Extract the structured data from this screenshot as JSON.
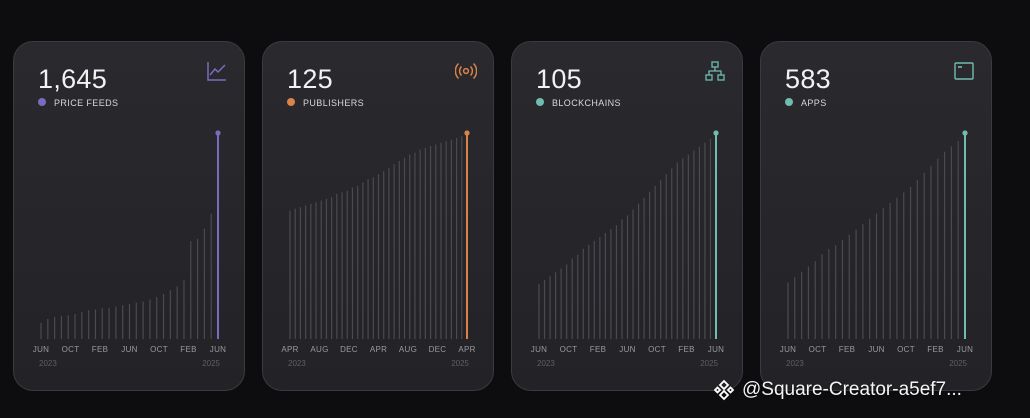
{
  "cards": [
    {
      "value": "1,645",
      "label": "PRICE FEEDS",
      "accent": "#7b6bbf",
      "icon": "trend-chart-icon"
    },
    {
      "value": "125",
      "label": "PUBLISHERS",
      "accent": "#d9834a",
      "icon": "broadcast-icon"
    },
    {
      "value": "105",
      "label": "BLOCKCHAINS",
      "accent": "#6fbcb0",
      "icon": "network-icon"
    },
    {
      "value": "583",
      "label": "APPS",
      "accent": "#6fbcb0",
      "icon": "window-icon"
    }
  ],
  "chart_data": [
    {
      "type": "bar",
      "title": "PRICE FEEDS",
      "ylim": [
        0,
        1645
      ],
      "x_ticks": [
        "JUN",
        "OCT",
        "FEB",
        "JUN",
        "OCT",
        "FEB",
        "JUN"
      ],
      "year_labels": [
        "2023",
        "2025"
      ],
      "values": [
        130,
        160,
        175,
        185,
        190,
        200,
        215,
        230,
        235,
        245,
        250,
        260,
        270,
        280,
        290,
        300,
        315,
        335,
        360,
        390,
        420,
        470,
        780,
        800,
        880,
        1000,
        1645
      ],
      "highlight_last": true
    },
    {
      "type": "bar",
      "title": "PUBLISHERS",
      "ylim": [
        0,
        125
      ],
      "x_ticks": [
        "APR",
        "AUG",
        "DEC",
        "APR",
        "AUG",
        "DEC",
        "APR"
      ],
      "year_labels": [
        "2023",
        "2025"
      ],
      "values": [
        78,
        79,
        80,
        81,
        82,
        83,
        84,
        85,
        86,
        88,
        89,
        90,
        92,
        93,
        95,
        97,
        98,
        100,
        102,
        104,
        106,
        108,
        110,
        112,
        113,
        115,
        116,
        117,
        118,
        119,
        120,
        121,
        122,
        123,
        125
      ],
      "highlight_last": true
    },
    {
      "type": "bar",
      "title": "BLOCKCHAINS",
      "ylim": [
        0,
        105
      ],
      "x_ticks": [
        "JUN",
        "OCT",
        "FEB",
        "JUN",
        "OCT",
        "FEB",
        "JUN"
      ],
      "year_labels": [
        "2023",
        "2025"
      ],
      "values": [
        28,
        30,
        32,
        34,
        36,
        38,
        41,
        43,
        46,
        48,
        50,
        52,
        54,
        56,
        58,
        61,
        63,
        66,
        69,
        72,
        75,
        78,
        81,
        84,
        87,
        90,
        92,
        94,
        96,
        98,
        100,
        102,
        105
      ],
      "highlight_last": true
    },
    {
      "type": "bar",
      "title": "APPS",
      "ylim": [
        0,
        583
      ],
      "x_ticks": [
        "JUN",
        "OCT",
        "FEB",
        "JUN",
        "OCT",
        "FEB",
        "JUN"
      ],
      "year_labels": [
        "2023",
        "2025"
      ],
      "values": [
        160,
        175,
        190,
        205,
        220,
        240,
        255,
        265,
        280,
        295,
        310,
        325,
        340,
        355,
        370,
        385,
        400,
        415,
        430,
        450,
        470,
        490,
        510,
        530,
        545,
        560,
        583
      ],
      "highlight_last": true
    }
  ],
  "watermark": {
    "text": "@Square-Creator-a5ef7...",
    "icon": "binance-logo-icon"
  }
}
